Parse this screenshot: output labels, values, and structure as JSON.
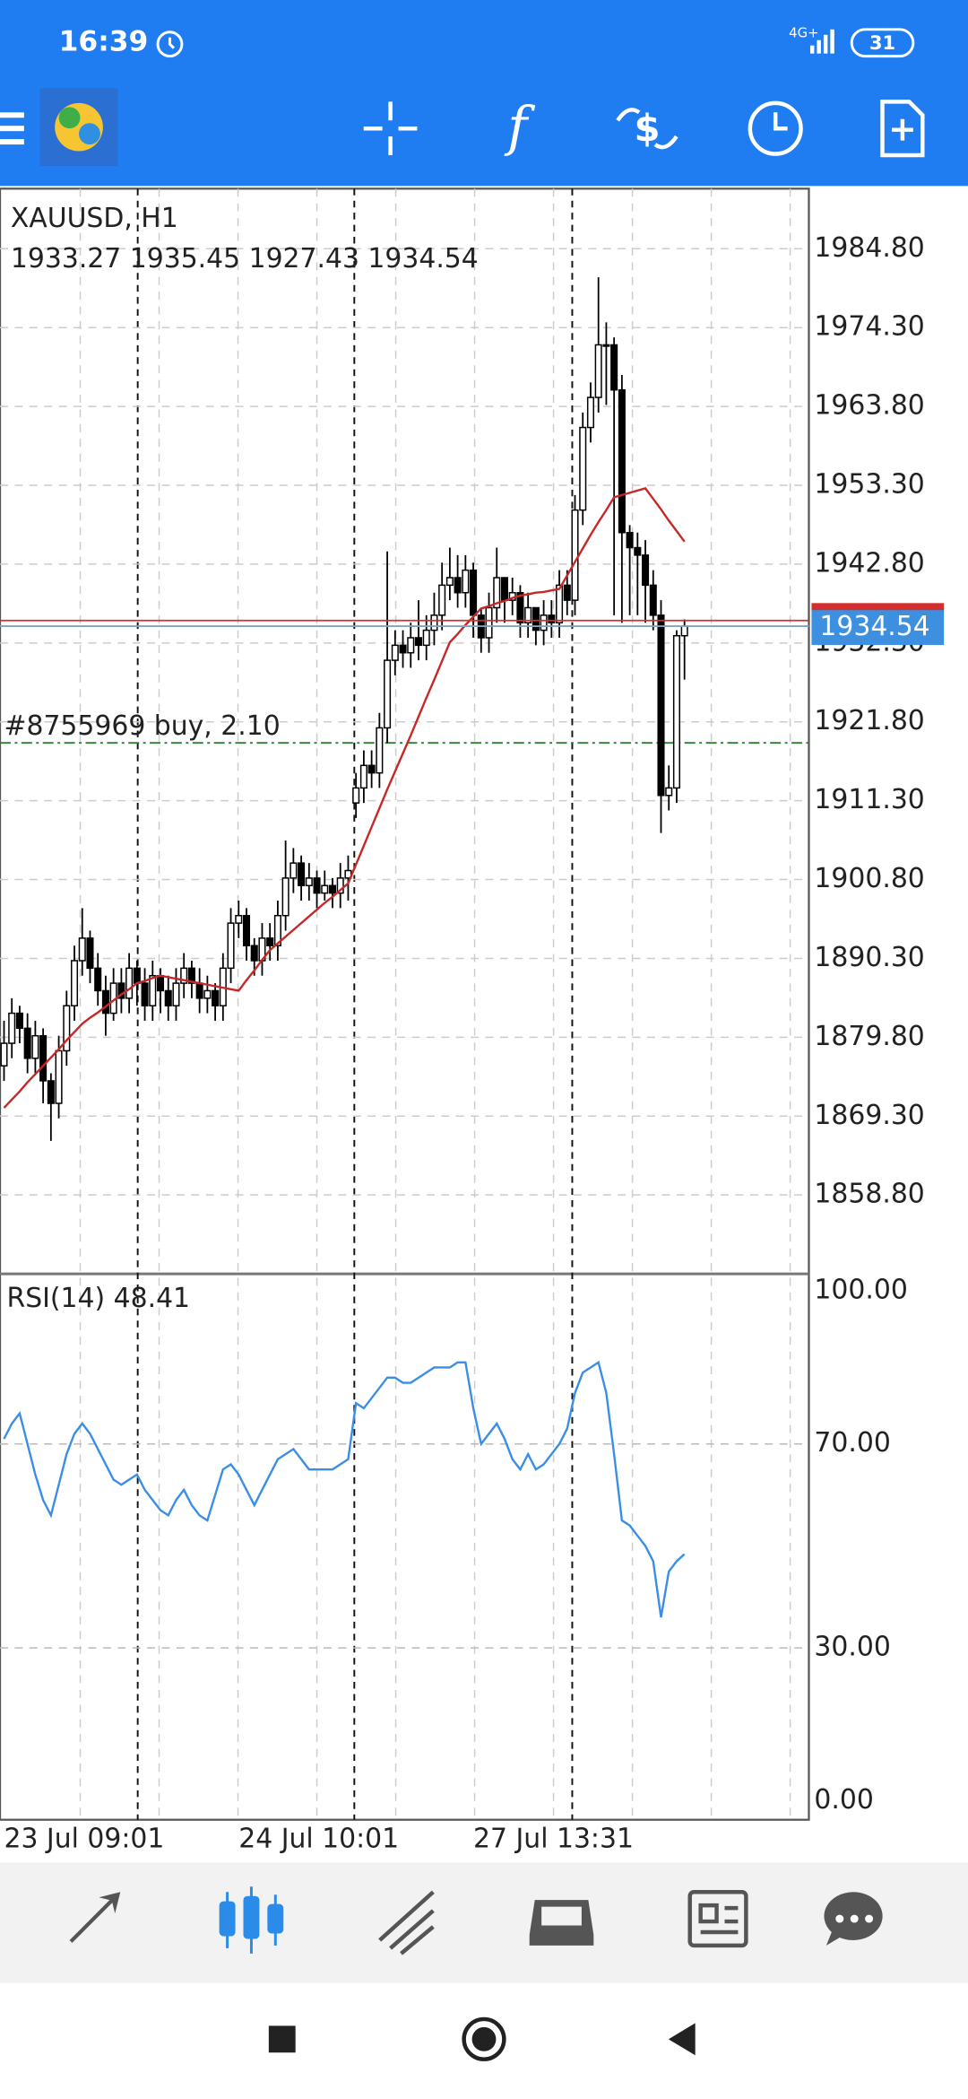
{
  "status_bar": {
    "time": "16:39",
    "network": "4G+",
    "battery": "31"
  },
  "chart_data": {
    "type": "candlestick",
    "symbol": "XAUUSD, H1",
    "ohlc_text": "1933.27 1935.45 1927.43 1934.54",
    "ylim": [
      1848.3,
      1992.8
    ],
    "yticks": [
      {
        "value": 1984.8,
        "label": "1984.80"
      },
      {
        "value": 1974.3,
        "label": "1974.30"
      },
      {
        "value": 1963.8,
        "label": "1963.80"
      },
      {
        "value": 1953.3,
        "label": "1953.30"
      },
      {
        "value": 1942.8,
        "label": "1942.80"
      },
      {
        "value": 1932.3,
        "label": "1932.30"
      },
      {
        "value": 1921.8,
        "label": "1921.80"
      },
      {
        "value": 1911.3,
        "label": "1911.30"
      },
      {
        "value": 1900.8,
        "label": "1900.80"
      },
      {
        "value": 1890.3,
        "label": "1890.30"
      },
      {
        "value": 1879.8,
        "label": "1879.80"
      },
      {
        "value": 1869.3,
        "label": "1869.30"
      },
      {
        "value": 1858.8,
        "label": "1858.80"
      }
    ],
    "grid": true,
    "categories": [
      "23 Jul 09:01",
      null,
      null,
      null,
      null,
      null,
      null,
      null,
      null,
      null,
      null,
      null,
      null,
      null,
      null,
      null,
      null,
      null,
      null,
      null,
      null,
      null,
      null,
      null,
      null,
      null,
      null,
      null,
      null,
      null,
      "24 Jul 10:01",
      null,
      null,
      null,
      null,
      null,
      null,
      null,
      null,
      null,
      null,
      null,
      null,
      null,
      null,
      null,
      null,
      null,
      null,
      null,
      null,
      null,
      null,
      null,
      null,
      null,
      null,
      null,
      null,
      null,
      "27 Jul 13:31",
      null,
      null,
      null,
      null,
      null,
      null,
      null,
      null,
      null,
      null,
      null,
      null,
      null,
      null,
      null,
      null,
      null,
      null,
      null,
      null,
      null,
      null,
      null,
      null,
      null,
      null,
      null
    ],
    "candles": {
      "open": [
        1876,
        1879,
        1883,
        1881,
        1877,
        1880,
        1874,
        1871,
        1878,
        1884,
        1890,
        1893,
        1889,
        1886,
        1883,
        1887,
        1885,
        1889,
        1887,
        1884,
        1888,
        1886,
        1884,
        1887,
        1889,
        1887,
        1885,
        1886,
        1884,
        1889,
        1895,
        1896,
        1892,
        1890,
        1893,
        1892,
        1896,
        1901,
        1903,
        1900,
        1901,
        1899,
        1900,
        1899,
        1901,
        1911,
        1913,
        1916,
        1915,
        1921,
        1930,
        1932,
        1931,
        1933,
        1932,
        1934,
        1936,
        1940,
        1941,
        1939,
        1942,
        1936,
        1933,
        1937,
        1941,
        1938,
        1939,
        1935,
        1937,
        1934,
        1936,
        1935,
        1940,
        1938,
        1950,
        1961,
        1965,
        1972,
        1972,
        1966,
        1947,
        1945,
        1944,
        1940,
        1936,
        1912,
        1913,
        1933.27
      ],
      "high": [
        1882,
        1885,
        1884,
        1883,
        1882,
        1881,
        1875,
        1880,
        1886,
        1892,
        1897,
        1894,
        1891,
        1888,
        1889,
        1889,
        1891,
        1890,
        1889,
        1890,
        1889,
        1888,
        1889,
        1891,
        1890,
        1889,
        1888,
        1887,
        1891,
        1897,
        1898,
        1897,
        1893,
        1895,
        1895,
        1898,
        1906,
        1905,
        1904,
        1903,
        1902,
        1902,
        1901,
        1903,
        1904,
        1915,
        1918,
        1918,
        1923,
        1944.5,
        1934,
        1934,
        1935,
        1938,
        1936,
        1939,
        1943,
        1945,
        1944,
        1944,
        1943,
        1937,
        1939,
        1945,
        1941,
        1941,
        1940,
        1939,
        1937,
        1938,
        1938,
        1942,
        1942,
        1952,
        1963,
        1967,
        1981,
        1975,
        1973,
        1968,
        1948,
        1947,
        1946,
        1942,
        1938,
        1916,
        1934,
        1935.45
      ],
      "low": [
        1874,
        1877,
        1879,
        1875,
        1875,
        1871,
        1866,
        1869,
        1876,
        1882,
        1888,
        1887,
        1884,
        1880,
        1882,
        1883,
        1883,
        1884,
        1882,
        1882,
        1883,
        1882,
        1882,
        1885,
        1885,
        1883,
        1883,
        1882,
        1882,
        1887,
        1893,
        1890,
        1888,
        1888,
        1890,
        1890,
        1894,
        1899,
        1898,
        1898,
        1897,
        1898,
        1897,
        1897,
        1898,
        1909,
        1911,
        1913,
        1913,
        1919,
        1928,
        1929,
        1929,
        1930,
        1930,
        1932,
        1934,
        1938,
        1937,
        1937,
        1933,
        1931,
        1931,
        1935,
        1935,
        1936,
        1933,
        1933,
        1932,
        1932,
        1933,
        1933,
        1936,
        1936,
        1948,
        1959,
        1963,
        1964,
        1936,
        1935,
        1936,
        1936,
        1935,
        1934,
        1907,
        1910,
        1911,
        1927.43
      ],
      "close": [
        1879,
        1883,
        1881,
        1877,
        1880,
        1874,
        1871,
        1878,
        1884,
        1890,
        1893,
        1889,
        1886,
        1883,
        1887,
        1885,
        1889,
        1887,
        1884,
        1888,
        1886,
        1884,
        1887,
        1889,
        1887,
        1885,
        1886,
        1884,
        1889,
        1895,
        1896,
        1892,
        1890,
        1893,
        1892,
        1896,
        1901,
        1903,
        1900,
        1901,
        1899,
        1900,
        1899,
        1901,
        1902,
        1913,
        1916,
        1915,
        1921,
        1930,
        1932,
        1931,
        1933,
        1932,
        1934,
        1936,
        1940,
        1941,
        1939,
        1942,
        1936,
        1933,
        1937,
        1941,
        1938,
        1939,
        1935,
        1937,
        1934,
        1936,
        1935,
        1940,
        1938,
        1950,
        1961,
        1965,
        1972,
        1972,
        1966,
        1947,
        1945,
        1944,
        1940,
        1936,
        1912,
        1913,
        1933.27,
        1934.54
      ],
      "up_color": "#ffffff",
      "down_color": "#000000"
    },
    "ma": {
      "color": "#c62828",
      "values": [
        1870.4,
        1871.5,
        1872.6,
        1873.8,
        1874.9,
        1876.0,
        1877.1,
        1878.2,
        1879.4,
        1880.5,
        1881.6,
        1882.4,
        1883.1,
        1883.9,
        1884.7,
        1885.5,
        1886.2,
        1887.0,
        1887.3,
        1887.7,
        1888.0,
        1887.8,
        1887.6,
        1887.4,
        1887.2,
        1887.0,
        1886.8,
        1886.6,
        1886.4,
        1886.2,
        1886.0,
        1887.4,
        1888.7,
        1890.1,
        1891.4,
        1892.3,
        1893.2,
        1894.1,
        1895.0,
        1895.9,
        1896.8,
        1897.7,
        1898.5,
        1899.4,
        1900.3,
        1902.8,
        1905.3,
        1907.8,
        1910.3,
        1912.8,
        1915.2,
        1917.6,
        1920.0,
        1922.5,
        1925.0,
        1927.4,
        1929.9,
        1932.4,
        1933.5,
        1934.7,
        1935.8,
        1936.9,
        1937.2,
        1937.6,
        1937.9,
        1938.3,
        1938.6,
        1938.8,
        1939.0,
        1939.1,
        1939.3,
        1939.5,
        1941.3,
        1943.1,
        1944.9,
        1946.7,
        1948.4,
        1950.0,
        1951.7,
        1952.0,
        1952.3,
        1952.6,
        1952.9,
        1951.5,
        1950.1,
        1948.6,
        1947.2,
        1945.8
      ]
    },
    "bid": 1934.54,
    "bid_color": "#7fa3c4",
    "ask": 1935.3,
    "ask_color": "#d32f2f",
    "order": {
      "label": "#8755969 buy, 2.10",
      "price": 1919.0,
      "color": "#2e7d32"
    },
    "rsi": {
      "label": "RSI(14) 48.41",
      "color": "#3a8ee6",
      "ylim": [
        -3.7,
        103.1
      ],
      "yticks": [
        {
          "value": 100,
          "label": "100.00"
        },
        {
          "value": 70,
          "label": "70.00"
        },
        {
          "value": 30,
          "label": "30.00"
        },
        {
          "value": 0,
          "label": "0.00"
        }
      ],
      "values": [
        71,
        74,
        76,
        70,
        64,
        59,
        56,
        62,
        68,
        72,
        74,
        72,
        69,
        66,
        63,
        62,
        63,
        64,
        61,
        59,
        57,
        56,
        59,
        61,
        58,
        56,
        55,
        60,
        65,
        66,
        64,
        61,
        58,
        61,
        64,
        67,
        68,
        69,
        67,
        65,
        65,
        65,
        65,
        66,
        67,
        78,
        77,
        79,
        81,
        83,
        83,
        82,
        82,
        83,
        84,
        85,
        85,
        85,
        86,
        86,
        77,
        70,
        72,
        74,
        71,
        67,
        65,
        68,
        65,
        66,
        68,
        70,
        73,
        80,
        84,
        85,
        86,
        80,
        68,
        55,
        54,
        52,
        50,
        47,
        36,
        45,
        47,
        48.41
      ]
    }
  }
}
